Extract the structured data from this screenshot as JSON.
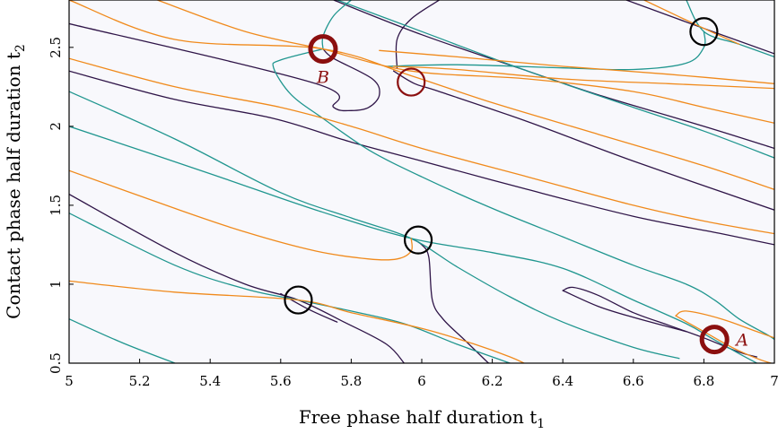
{
  "chart_data": {
    "type": "line",
    "title": "",
    "xlabel": "Free phase half duration t",
    "xlabel_sub": "1",
    "ylabel": "Contact phase half duration t",
    "ylabel_sub": "2",
    "xlim": [
      5,
      7
    ],
    "ylim": [
      0.5,
      2.8
    ],
    "x_ticks": [
      5,
      5.2,
      5.4,
      5.6,
      5.8,
      6,
      6.2,
      6.4,
      6.6,
      6.8,
      7
    ],
    "x_tick_labels": [
      "5",
      "5.2",
      "5.4",
      "5.6",
      "5.8",
      "6",
      "6.2",
      "6.4",
      "6.6",
      "6.8",
      "7"
    ],
    "y_ticks": [
      0.5,
      1,
      1.5,
      2,
      2.5
    ],
    "y_tick_labels": [
      "0.5",
      "1",
      "1.5",
      "2",
      "2.5"
    ],
    "grid": false,
    "background_color": "#f8f8fc",
    "colors": {
      "purple": "#2f1548",
      "teal": "#20968f",
      "orange": "#f08a1c",
      "dark_red": "#8b0f0f",
      "black": "#000000"
    },
    "series": [
      {
        "color": "purple",
        "points": [
          [
            5,
            2.65
          ],
          [
            5.7,
            2.27
          ],
          [
            5.75,
            2.12
          ],
          [
            5.8,
            2.1
          ],
          [
            5.85,
            2.12
          ],
          [
            5.88,
            2.2
          ],
          [
            5.86,
            2.3
          ],
          [
            5.75,
            2.43
          ],
          [
            5.72,
            2.49
          ]
        ]
      },
      {
        "color": "purple",
        "points": [
          [
            5,
            2.35
          ],
          [
            5.3,
            2.17
          ],
          [
            5.58,
            2.05
          ],
          [
            5.8,
            1.9
          ],
          [
            6.0,
            1.78
          ],
          [
            6.3,
            1.6
          ],
          [
            6.6,
            1.43
          ],
          [
            6.85,
            1.32
          ],
          [
            7,
            1.25
          ]
        ]
      },
      {
        "color": "purple",
        "points": [
          [
            5,
            1.57
          ],
          [
            5.3,
            1.2
          ],
          [
            5.5,
            1.0
          ],
          [
            5.65,
            0.9
          ],
          [
            5.78,
            0.76
          ],
          [
            5.9,
            0.62
          ],
          [
            5.95,
            0.5
          ]
        ]
      },
      {
        "color": "purple",
        "points": [
          [
            5.6,
            0.94
          ],
          [
            5.68,
            0.84
          ],
          [
            5.76,
            0.76
          ]
        ]
      },
      {
        "color": "purple",
        "points": [
          [
            5.75,
            2.8
          ],
          [
            6.0,
            2.58
          ],
          [
            6.3,
            2.35
          ],
          [
            6.5,
            2.2
          ],
          [
            6.8,
            2.0
          ],
          [
            7,
            1.86
          ]
        ]
      },
      {
        "color": "purple",
        "points": [
          [
            5.92,
            2.35
          ],
          [
            5.98,
            2.27
          ],
          [
            6.05,
            2.22
          ],
          [
            6.3,
            2.03
          ],
          [
            6.6,
            1.78
          ],
          [
            7,
            1.47
          ]
        ]
      },
      {
        "color": "purple",
        "points": [
          [
            5.93,
            2.37
          ],
          [
            5.93,
            2.55
          ],
          [
            5.97,
            2.68
          ],
          [
            6.05,
            2.8
          ]
        ]
      },
      {
        "color": "purple",
        "points": [
          [
            5.97,
            1.29
          ],
          [
            6.0,
            1.25
          ],
          [
            6.02,
            1.17
          ],
          [
            6.03,
            0.9
          ],
          [
            6.06,
            0.78
          ],
          [
            6.12,
            0.65
          ],
          [
            6.18,
            0.52
          ],
          [
            6.19,
            0.5
          ]
        ]
      },
      {
        "color": "purple",
        "points": [
          [
            6.4,
            0.96
          ],
          [
            6.43,
            0.98
          ],
          [
            6.5,
            0.93
          ],
          [
            6.6,
            0.82
          ],
          [
            6.7,
            0.74
          ],
          [
            6.8,
            0.66
          ],
          [
            6.9,
            0.57
          ],
          [
            6.95,
            0.54
          ]
        ]
      },
      {
        "color": "purple",
        "points": [
          [
            6.4,
            0.96
          ],
          [
            6.5,
            0.86
          ],
          [
            6.6,
            0.79
          ],
          [
            6.75,
            0.7
          ]
        ]
      },
      {
        "color": "purple",
        "points": [
          [
            6.58,
            2.8
          ],
          [
            6.8,
            2.62
          ],
          [
            7,
            2.46
          ]
        ]
      },
      {
        "color": "teal",
        "points": [
          [
            5,
            2.22
          ],
          [
            5.3,
            1.92
          ],
          [
            5.6,
            1.58
          ],
          [
            5.8,
            1.42
          ],
          [
            5.97,
            1.29
          ],
          [
            6.1,
            1.11
          ],
          [
            6.25,
            0.92
          ],
          [
            6.4,
            0.76
          ],
          [
            6.6,
            0.6
          ],
          [
            6.73,
            0.53
          ]
        ]
      },
      {
        "color": "teal",
        "points": [
          [
            5,
            1.45
          ],
          [
            5.3,
            1.12
          ],
          [
            5.5,
            0.97
          ],
          [
            5.65,
            0.9
          ],
          [
            5.8,
            0.83
          ],
          [
            5.95,
            0.75
          ],
          [
            6.1,
            0.62
          ],
          [
            6.25,
            0.5
          ]
        ]
      },
      {
        "color": "teal",
        "points": [
          [
            5,
            0.78
          ],
          [
            5.15,
            0.63
          ],
          [
            5.3,
            0.5
          ]
        ]
      },
      {
        "color": "teal",
        "points": [
          [
            5,
            2.0
          ],
          [
            5.4,
            1.7
          ],
          [
            5.7,
            1.47
          ],
          [
            5.97,
            1.29
          ],
          [
            6.2,
            1.2
          ],
          [
            6.4,
            1.1
          ],
          [
            6.6,
            0.9
          ],
          [
            6.75,
            0.75
          ],
          [
            6.82,
            0.66
          ],
          [
            6.9,
            0.56
          ],
          [
            6.95,
            0.5
          ]
        ]
      },
      {
        "color": "teal",
        "points": [
          [
            5.72,
            2.49
          ],
          [
            5.72,
            2.57
          ],
          [
            5.75,
            2.7
          ],
          [
            5.8,
            2.8
          ]
        ]
      },
      {
        "color": "teal",
        "points": [
          [
            5.72,
            2.49
          ],
          [
            5.6,
            2.42
          ],
          [
            5.58,
            2.37
          ],
          [
            5.63,
            2.2
          ],
          [
            5.72,
            2.05
          ],
          [
            5.85,
            1.85
          ],
          [
            6.0,
            1.68
          ],
          [
            6.2,
            1.48
          ],
          [
            6.4,
            1.3
          ],
          [
            6.6,
            1.12
          ],
          [
            6.75,
            1.0
          ],
          [
            6.83,
            0.9
          ],
          [
            6.9,
            0.78
          ],
          [
            6.98,
            0.68
          ],
          [
            7,
            0.65
          ]
        ]
      },
      {
        "color": "teal",
        "points": [
          [
            5.9,
            2.38
          ],
          [
            6.1,
            2.39
          ],
          [
            6.4,
            2.37
          ],
          [
            6.6,
            2.36
          ],
          [
            6.75,
            2.4
          ],
          [
            6.8,
            2.5
          ],
          [
            6.8,
            2.6
          ]
        ]
      },
      {
        "color": "teal",
        "points": [
          [
            5.76,
            2.8
          ],
          [
            6.0,
            2.6
          ],
          [
            6.3,
            2.35
          ],
          [
            6.6,
            2.12
          ],
          [
            6.8,
            1.97
          ],
          [
            7,
            1.8
          ]
        ]
      },
      {
        "color": "teal",
        "points": [
          [
            6.75,
            2.8
          ],
          [
            6.8,
            2.6
          ],
          [
            6.9,
            2.52
          ],
          [
            7,
            2.44
          ]
        ]
      },
      {
        "color": "orange",
        "points": [
          [
            5,
            2.8
          ],
          [
            5.3,
            2.55
          ],
          [
            5.72,
            2.49
          ],
          [
            5.97,
            2.32
          ],
          [
            6.2,
            2.15
          ],
          [
            6.5,
            1.95
          ],
          [
            6.8,
            1.75
          ],
          [
            7,
            1.6
          ]
        ]
      },
      {
        "color": "orange",
        "points": [
          [
            5,
            2.43
          ],
          [
            5.3,
            2.25
          ],
          [
            5.6,
            2.12
          ],
          [
            5.8,
            2.0
          ],
          [
            6.0,
            1.86
          ],
          [
            6.3,
            1.68
          ],
          [
            6.6,
            1.5
          ],
          [
            6.8,
            1.4
          ],
          [
            7,
            1.32
          ]
        ]
      },
      {
        "color": "orange",
        "points": [
          [
            5,
            1.72
          ],
          [
            5.3,
            1.48
          ],
          [
            5.5,
            1.33
          ],
          [
            5.7,
            1.21
          ],
          [
            5.85,
            1.16
          ],
          [
            5.93,
            1.16
          ],
          [
            5.97,
            1.21
          ],
          [
            5.97,
            1.29
          ]
        ]
      },
      {
        "color": "orange",
        "points": [
          [
            5,
            1.02
          ],
          [
            5.3,
            0.95
          ],
          [
            5.65,
            0.9
          ],
          [
            5.8,
            0.82
          ],
          [
            6.0,
            0.72
          ],
          [
            6.15,
            0.62
          ],
          [
            6.25,
            0.54
          ],
          [
            6.29,
            0.5
          ]
        ]
      },
      {
        "color": "orange",
        "points": [
          [
            5.72,
            2.49
          ],
          [
            5.97,
            2.35
          ],
          [
            6.3,
            2.3
          ],
          [
            6.6,
            2.22
          ],
          [
            6.8,
            2.12
          ],
          [
            7,
            2.02
          ]
        ]
      },
      {
        "color": "orange",
        "points": [
          [
            5.25,
            2.8
          ],
          [
            5.5,
            2.6
          ],
          [
            5.72,
            2.49
          ]
        ]
      },
      {
        "color": "orange",
        "points": [
          [
            5.88,
            2.48
          ],
          [
            6.1,
            2.44
          ],
          [
            6.4,
            2.38
          ],
          [
            6.7,
            2.33
          ],
          [
            7,
            2.27
          ]
        ]
      },
      {
        "color": "orange",
        "points": [
          [
            5.92,
            2.38
          ],
          [
            6.1,
            2.36
          ],
          [
            6.4,
            2.3
          ],
          [
            6.7,
            2.27
          ],
          [
            7,
            2.24
          ]
        ]
      },
      {
        "color": "orange",
        "points": [
          [
            6.72,
            0.8
          ],
          [
            6.75,
            0.83
          ],
          [
            6.85,
            0.78
          ],
          [
            6.95,
            0.7
          ],
          [
            7,
            0.66
          ]
        ]
      },
      {
        "color": "orange",
        "points": [
          [
            6.72,
            0.8
          ],
          [
            6.8,
            0.7
          ],
          [
            6.88,
            0.6
          ],
          [
            6.95,
            0.53
          ],
          [
            6.99,
            0.5
          ]
        ]
      },
      {
        "color": "orange",
        "points": [
          [
            6.63,
            2.8
          ],
          [
            6.8,
            2.62
          ],
          [
            6.9,
            2.52
          ]
        ]
      }
    ],
    "markers": [
      {
        "label": "",
        "x": 5.65,
        "y": 0.9,
        "color": "black",
        "thick": false
      },
      {
        "label": "",
        "x": 5.99,
        "y": 1.28,
        "color": "black",
        "thick": false
      },
      {
        "label": "",
        "x": 6.8,
        "y": 2.6,
        "color": "black",
        "thick": false
      },
      {
        "label": "",
        "x": 5.97,
        "y": 2.28,
        "color": "dark_red",
        "thick": false
      },
      {
        "label": "B",
        "x": 5.72,
        "y": 2.49,
        "color": "dark_red",
        "thick": true,
        "label_position": "below"
      },
      {
        "label": "A",
        "x": 6.83,
        "y": 0.65,
        "color": "dark_red",
        "thick": true,
        "label_position": "right"
      }
    ]
  }
}
